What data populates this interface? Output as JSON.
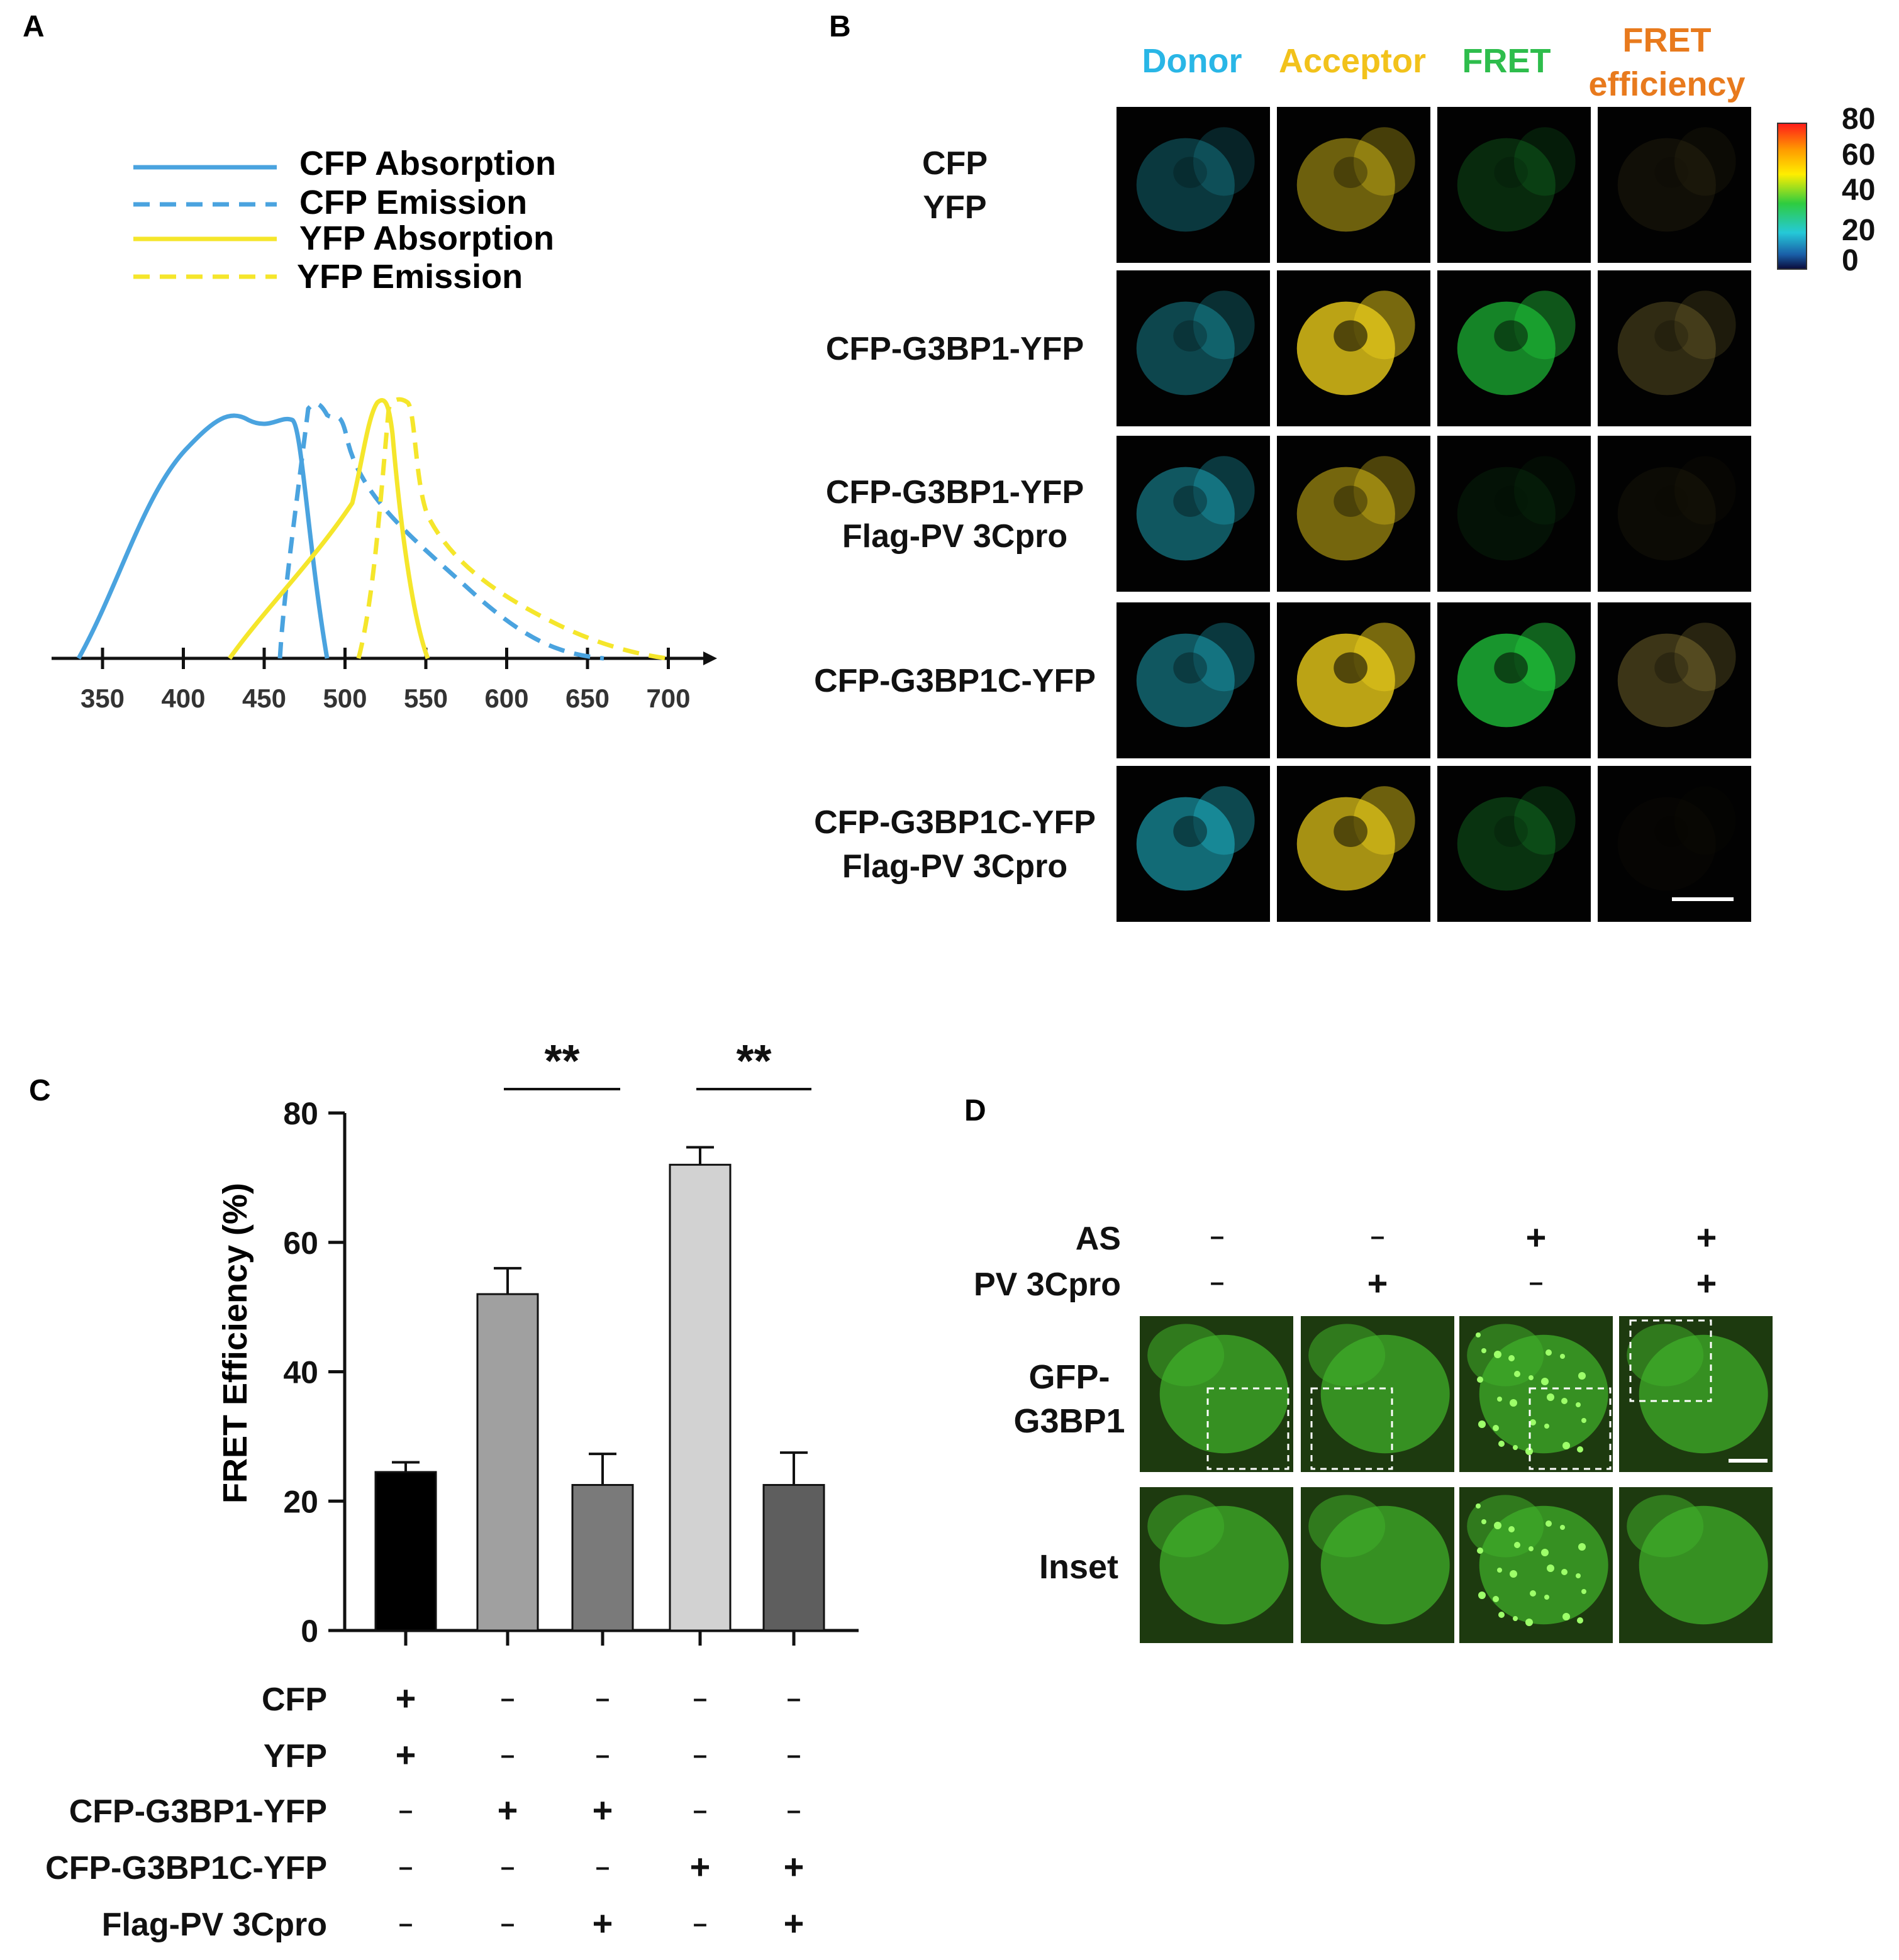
{
  "panel_a": {
    "label": "A",
    "legend": [
      {
        "label": "CFP Absorption",
        "color": "#4aa3df",
        "style": "solid"
      },
      {
        "label": "CFP Emission",
        "color": "#4aa3df",
        "style": "dashed"
      },
      {
        "label": "YFP Absorption",
        "color": "#f5e62b",
        "style": "solid"
      },
      {
        "label": "YFP Emission",
        "color": "#f5e62b",
        "style": "dashed"
      }
    ],
    "x_ticks": [
      "350",
      "400",
      "450",
      "500",
      "550",
      "600",
      "650",
      "700"
    ]
  },
  "panel_b": {
    "label": "B",
    "columns": [
      {
        "label": "Donor",
        "color": "#29b6e6"
      },
      {
        "label": "Acceptor",
        "color": "#f2c21b"
      },
      {
        "label": "FRET",
        "color": "#2ebd4c"
      },
      {
        "label": "FRET\nefficiency",
        "color": "#e87a1d"
      }
    ],
    "rows": [
      {
        "label": "CFP\nYFP",
        "intensity": [
          0.35,
          0.55,
          0.25,
          0.12
        ]
      },
      {
        "label": "CFP-G3BP1-YFP",
        "intensity": [
          0.45,
          0.95,
          0.8,
          0.35
        ]
      },
      {
        "label": "CFP-G3BP1-YFP\nFlag-PV 3Cpro",
        "intensity": [
          0.55,
          0.6,
          0.1,
          0.08
        ]
      },
      {
        "label": "CFP-G3BP1C-YFP",
        "intensity": [
          0.55,
          0.95,
          0.9,
          0.45
        ]
      },
      {
        "label": "CFP-G3BP1C-YFP\nFlag-PV 3Cpro",
        "intensity": [
          0.7,
          0.85,
          0.3,
          0.04
        ]
      }
    ],
    "colorbar": {
      "ticks": [
        "80",
        "60",
        "40",
        "20",
        "0"
      ]
    },
    "cell_colors": [
      "#1fb6c9",
      "#e6c91a",
      "#1fc23a",
      "#9c8a3a"
    ]
  },
  "chart_data": {
    "type": "bar",
    "panel_label": "C",
    "ylabel": "FRET Efficiency (%)",
    "ylim": [
      0,
      80
    ],
    "yticks": [
      "0",
      "20",
      "40",
      "60",
      "80"
    ],
    "values": [
      24.5,
      52,
      22.5,
      72,
      22.5
    ],
    "errors": [
      1.5,
      4,
      4.8,
      2.7,
      5
    ],
    "colors": [
      "#000000",
      "#a0a0a0",
      "#7a7a7a",
      "#d2d2d2",
      "#5e5e5e"
    ],
    "significance": [
      {
        "from": 1,
        "to": 2,
        "label": "**"
      },
      {
        "from": 3,
        "to": 4,
        "label": "**"
      }
    ],
    "conditions": [
      {
        "label": "CFP",
        "signs": [
          "+",
          "–",
          "–",
          "–",
          "–"
        ]
      },
      {
        "label": "YFP",
        "signs": [
          "+",
          "–",
          "–",
          "–",
          "–"
        ]
      },
      {
        "label": "CFP-G3BP1-YFP",
        "signs": [
          "–",
          "+",
          "+",
          "–",
          "–"
        ]
      },
      {
        "label": "CFP-G3BP1C-YFP",
        "signs": [
          "–",
          "–",
          "–",
          "+",
          "+"
        ]
      },
      {
        "label": "Flag-PV 3Cpro",
        "signs": [
          "–",
          "–",
          "+",
          "–",
          "+"
        ]
      }
    ]
  },
  "panel_d": {
    "label": "D",
    "conditions": [
      {
        "label": "AS",
        "signs": [
          "–",
          "–",
          "+",
          "+"
        ]
      },
      {
        "label": "PV 3Cpro",
        "signs": [
          "–",
          "+",
          "–",
          "+"
        ]
      }
    ],
    "row_labels": [
      "GFP-\nG3BP1",
      "Inset"
    ],
    "cell_color": "#3fae2a"
  }
}
